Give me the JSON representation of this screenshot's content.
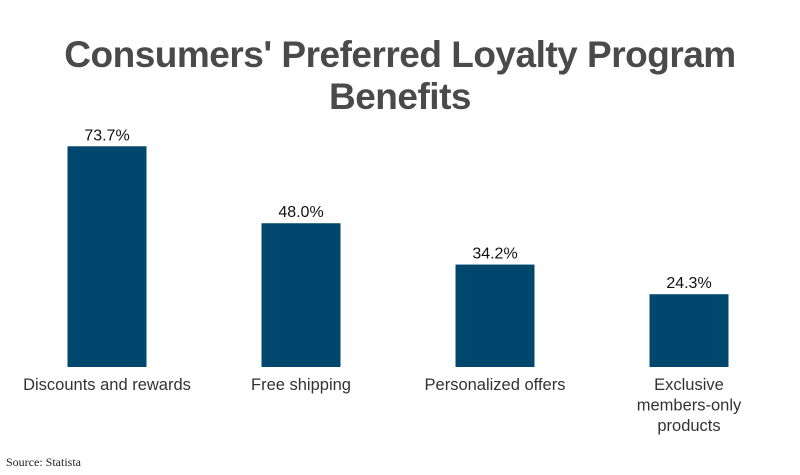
{
  "chart_data": {
    "type": "bar",
    "title": "Consumers' Preferred Loyalty Program Benefits",
    "categories": [
      "Discounts and rewards",
      "Free shipping",
      "Personalized offers",
      "Exclusive members-only products"
    ],
    "values": [
      73.7,
      48.0,
      34.2,
      24.3
    ],
    "data_labels": [
      "73.7%",
      "48.0%",
      "34.2%",
      "24.3%"
    ],
    "xlabel": "",
    "ylabel": "",
    "ylim": [
      0,
      80
    ],
    "grid": false,
    "legend": "none",
    "bar_color": "#00476e"
  },
  "source": "Source: Statista"
}
